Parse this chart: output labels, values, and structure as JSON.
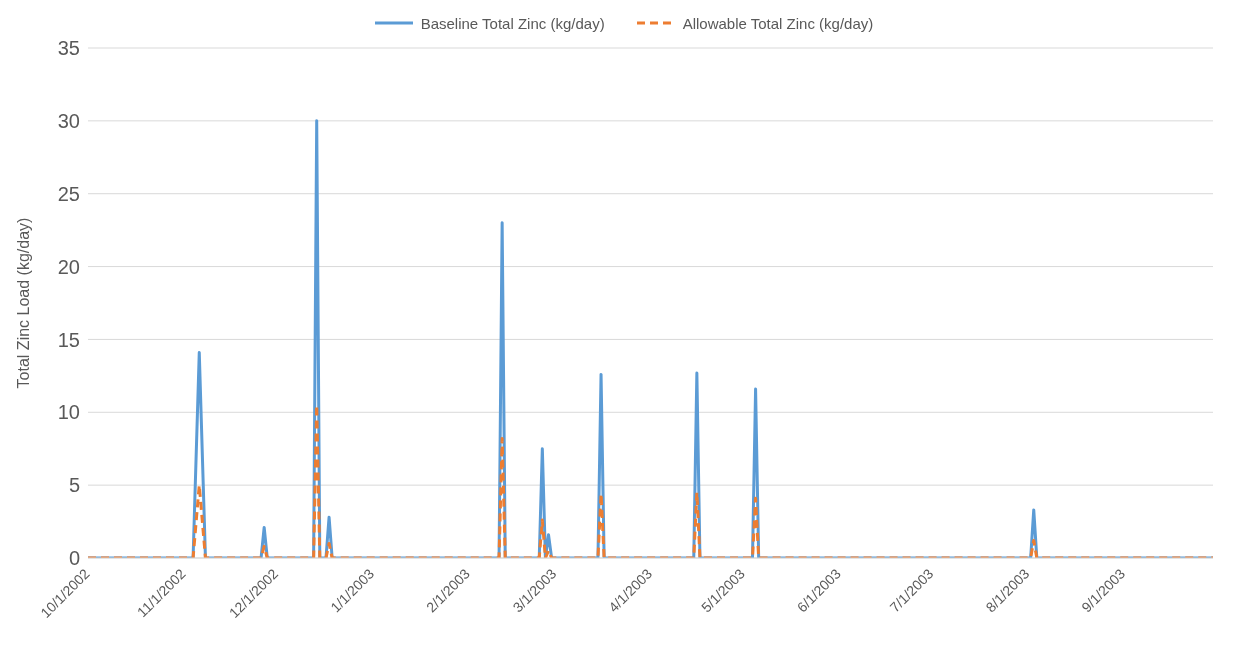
{
  "chart_data": {
    "type": "line",
    "ylabel": "Total Zinc Load (kg/day)",
    "x": [
      "2002-10-01",
      "2002-11-04",
      "2002-11-06",
      "2002-11-08",
      "2002-11-26",
      "2002-11-27",
      "2002-11-28",
      "2002-12-13",
      "2002-12-14",
      "2002-12-15",
      "2002-12-17",
      "2002-12-18",
      "2002-12-19",
      "2003-02-11",
      "2003-02-12",
      "2003-02-13",
      "2003-02-24",
      "2003-02-25",
      "2003-02-26",
      "2003-02-27",
      "2003-02-28",
      "2003-03-15",
      "2003-03-16",
      "2003-03-17",
      "2003-04-15",
      "2003-04-16",
      "2003-04-17",
      "2003-05-04",
      "2003-05-05",
      "2003-05-06",
      "2003-08-02",
      "2003-08-03",
      "2003-08-04",
      "2003-09-30"
    ],
    "series": [
      {
        "name": "Baseline Total Zinc (kg/day)",
        "color": "#5b9bd5",
        "line_style": "solid",
        "values": [
          0,
          0,
          14.1,
          0,
          0,
          2.1,
          0,
          0,
          30,
          0,
          0,
          2.8,
          0,
          0,
          23,
          0,
          0,
          7.5,
          0,
          1.6,
          0,
          0,
          12.6,
          0,
          0,
          12.7,
          0,
          0,
          11.6,
          0,
          0,
          3.3,
          0,
          0
        ]
      },
      {
        "name": "Allowable Total Zinc (kg/day)",
        "color": "#ed7d31",
        "line_style": "dashed",
        "values": [
          0,
          0,
          5,
          0,
          0,
          0.8,
          0,
          0,
          10.5,
          0,
          0,
          1,
          0,
          0,
          8.2,
          0,
          0,
          2.6,
          0,
          0.5,
          0,
          0,
          4.4,
          0,
          0,
          4.5,
          0,
          0,
          4.1,
          0,
          0,
          1.2,
          0,
          0
        ]
      }
    ],
    "xlim": [
      "2002-10-01",
      "2003-09-30"
    ],
    "xticks": [
      {
        "value": "2002-10-01",
        "label": "10/1/2002"
      },
      {
        "value": "2002-11-01",
        "label": "11/1/2002"
      },
      {
        "value": "2002-12-01",
        "label": "12/1/2002"
      },
      {
        "value": "2003-01-01",
        "label": "1/1/2003"
      },
      {
        "value": "2003-02-01",
        "label": "2/1/2003"
      },
      {
        "value": "2003-03-01",
        "label": "3/1/2003"
      },
      {
        "value": "2003-04-01",
        "label": "4/1/2003"
      },
      {
        "value": "2003-05-01",
        "label": "5/1/2003"
      },
      {
        "value": "2003-06-01",
        "label": "6/1/2003"
      },
      {
        "value": "2003-07-01",
        "label": "7/1/2003"
      },
      {
        "value": "2003-08-01",
        "label": "8/1/2003"
      },
      {
        "value": "2003-09-01",
        "label": "9/1/2003"
      }
    ],
    "ylim": [
      0,
      35
    ],
    "yticks": [
      0,
      5,
      10,
      15,
      20,
      25,
      30,
      35
    ],
    "grid": "y",
    "legend": "top",
    "marker": "none"
  }
}
